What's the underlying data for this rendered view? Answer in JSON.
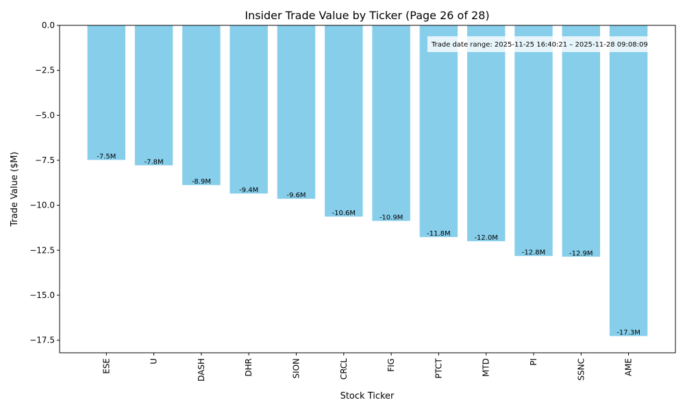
{
  "chart_data": {
    "type": "bar",
    "title": "Insider Trade Value by Ticker (Page 26 of 28)",
    "xlabel": "Stock Ticker",
    "ylabel": "Trade Value ($M)",
    "ylim": [
      -18.2,
      0
    ],
    "yticks": [
      0,
      -2.5,
      -5,
      -7.5,
      -10,
      -12.5,
      -15,
      -17.5
    ],
    "ytick_labels": [
      "0.0",
      "−2.5",
      "−5.0",
      "−7.5",
      "−10.0",
      "−12.5",
      "−15.0",
      "−17.5"
    ],
    "categories": [
      "ESE",
      "U",
      "DASH",
      "DHR",
      "SION",
      "CRCL",
      "FIG",
      "PTCT",
      "MTD",
      "PI",
      "SSNC",
      "AME"
    ],
    "values": [
      -7.48,
      -7.78,
      -8.88,
      -9.35,
      -9.64,
      -10.63,
      -10.87,
      -11.77,
      -12.0,
      -12.82,
      -12.86,
      -17.27
    ],
    "data_labels": [
      "-7.5M",
      "-7.8M",
      "-8.9M",
      "-9.4M",
      "-9.6M",
      "-10.6M",
      "-10.9M",
      "-11.8M",
      "-12.0M",
      "-12.8M",
      "-12.9M",
      "-17.3M"
    ],
    "bar_color": "#87ceeb",
    "grid": false,
    "annotation": "Trade date range: 2025-11-25 16:40:21 – 2025-11-28 09:08:09"
  }
}
